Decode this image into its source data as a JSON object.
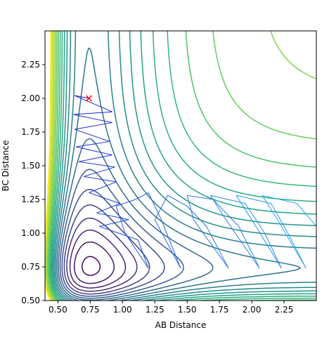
{
  "chart_data": {
    "type": "contour",
    "title": "",
    "xlabel": "AB Distance",
    "ylabel": "BC Distance",
    "xlim": [
      0.4,
      2.5
    ],
    "ylim": [
      0.5,
      2.5
    ],
    "x_ticks": [
      "0.50",
      "0.75",
      "1.00",
      "1.25",
      "1.50",
      "1.75",
      "2.00",
      "2.25"
    ],
    "y_ticks": [
      "0.50",
      "0.75",
      "1.00",
      "1.25",
      "1.50",
      "1.75",
      "2.00",
      "2.25"
    ],
    "x_tick_values": [
      0.5,
      0.75,
      1.0,
      1.25,
      1.5,
      1.75,
      2.0,
      2.25
    ],
    "y_tick_values": [
      0.5,
      0.75,
      1.0,
      1.25,
      1.5,
      1.75,
      2.0,
      2.25
    ],
    "grid": false,
    "colormap": "viridis",
    "contour_levels": 22,
    "potential": {
      "well_depth": 1.0,
      "equilibrium_distance": 0.74,
      "morse_a": 2.6,
      "coupling": 0.15
    },
    "trajectory": {
      "color_start": "#1f1fc8",
      "color_end": "#2aa8f0",
      "points": [
        [
          0.74,
          2.0
        ],
        [
          0.63,
          2.02
        ],
        [
          0.92,
          1.9
        ],
        [
          0.62,
          1.88
        ],
        [
          0.92,
          1.82
        ],
        [
          0.63,
          1.77
        ],
        [
          0.9,
          1.68
        ],
        [
          0.64,
          1.64
        ],
        [
          0.92,
          1.58
        ],
        [
          0.66,
          1.53
        ],
        [
          0.94,
          1.49
        ],
        [
          0.7,
          1.42
        ],
        [
          0.95,
          1.38
        ],
        [
          0.74,
          1.3
        ],
        [
          0.98,
          1.22
        ],
        [
          0.8,
          1.15
        ],
        [
          1.05,
          1.1
        ],
        [
          0.82,
          1.05
        ],
        [
          1.12,
          0.95
        ],
        [
          1.2,
          0.74
        ],
        [
          1.02,
          1.0
        ],
        [
          0.95,
          1.2
        ],
        [
          1.1,
          1.25
        ],
        [
          1.2,
          1.3
        ],
        [
          1.3,
          1.1
        ],
        [
          1.45,
          0.74
        ],
        [
          1.25,
          1.1
        ],
        [
          1.35,
          1.28
        ],
        [
          1.5,
          1.2
        ],
        [
          1.65,
          1.05
        ],
        [
          1.82,
          0.74
        ],
        [
          1.55,
          1.1
        ],
        [
          1.5,
          1.28
        ],
        [
          1.7,
          1.25
        ],
        [
          1.9,
          1.05
        ],
        [
          2.06,
          0.74
        ],
        [
          1.8,
          1.1
        ],
        [
          1.68,
          1.28
        ],
        [
          1.95,
          1.22
        ],
        [
          2.1,
          1.0
        ],
        [
          2.23,
          0.74
        ],
        [
          2.0,
          1.1
        ],
        [
          1.88,
          1.28
        ],
        [
          2.15,
          1.22
        ],
        [
          2.28,
          1.0
        ],
        [
          2.42,
          0.74
        ],
        [
          2.2,
          1.1
        ],
        [
          2.08,
          1.28
        ],
        [
          2.35,
          1.22
        ],
        [
          2.5,
          1.05
        ]
      ]
    },
    "start_marker": {
      "x": 0.74,
      "y": 2.0,
      "symbol": "x",
      "color": "#ff0000"
    },
    "reactant_well_color": "#2b0d5c",
    "max_color": "#fde725"
  }
}
